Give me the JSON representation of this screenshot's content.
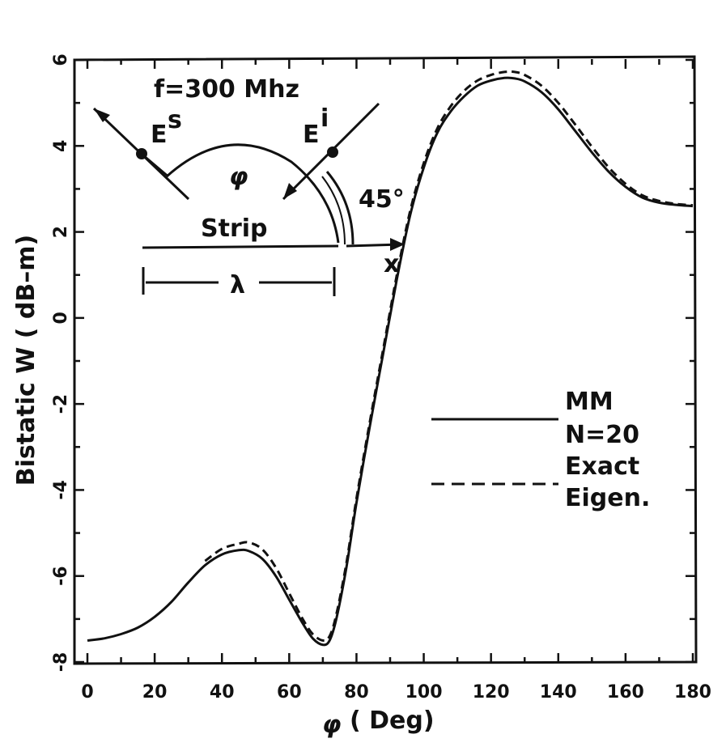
{
  "chart_data": {
    "type": "line",
    "xlabel_symbol": "φ",
    "xlabel_unit": "( Deg)",
    "ylabel": "Bistatic W ( dB–m)",
    "xlim": [
      0,
      180
    ],
    "ylim": [
      -8,
      6
    ],
    "xticks": [
      0,
      20,
      40,
      60,
      80,
      100,
      120,
      140,
      160,
      180
    ],
    "yticks": [
      -8,
      -6,
      -4,
      -2,
      0,
      2,
      4,
      6
    ],
    "xtick_labels": [
      "0",
      "20",
      "40",
      "60",
      "80",
      "100",
      "120",
      "140",
      "160",
      "180"
    ],
    "ytick_labels": [
      "-8",
      "-6",
      "-4",
      "-2",
      "0",
      "2",
      "4",
      "6"
    ],
    "grid": false,
    "legend_position": "center-right",
    "legend_entries": [
      {
        "line_style": "solid",
        "lines": [
          "MM",
          "N=20"
        ]
      },
      {
        "line_style": "dashed",
        "lines": [
          "Exact",
          "Eigen."
        ]
      }
    ],
    "series": [
      {
        "style": "solid",
        "x": [
          0,
          5,
          10,
          15,
          20,
          25,
          30,
          35,
          40,
          45,
          48,
          52,
          56,
          60,
          64,
          67,
          70,
          72,
          74,
          77,
          80,
          84,
          88,
          92,
          96,
          100,
          104,
          108,
          112,
          116,
          120,
          124,
          127,
          130,
          135,
          140,
          145,
          150,
          155,
          160,
          165,
          170,
          175,
          180
        ],
        "y": [
          -7.5,
          -7.45,
          -7.35,
          -7.2,
          -6.95,
          -6.6,
          -6.15,
          -5.75,
          -5.5,
          -5.4,
          -5.42,
          -5.6,
          -6.0,
          -6.55,
          -7.1,
          -7.45,
          -7.6,
          -7.5,
          -7.0,
          -5.8,
          -4.3,
          -2.5,
          -0.8,
          0.9,
          2.4,
          3.5,
          4.3,
          4.8,
          5.15,
          5.4,
          5.52,
          5.58,
          5.57,
          5.5,
          5.25,
          4.85,
          4.35,
          3.85,
          3.4,
          3.05,
          2.8,
          2.68,
          2.63,
          2.6
        ]
      },
      {
        "style": "dashed",
        "x": [
          35,
          40,
          45,
          48,
          52,
          56,
          60,
          64,
          67,
          70,
          72,
          74,
          77,
          80,
          84,
          88,
          92,
          96,
          100,
          104,
          108,
          112,
          116,
          120,
          124,
          127,
          130,
          135,
          140,
          145,
          150,
          155,
          160,
          165,
          170,
          175,
          180
        ],
        "y": [
          -5.65,
          -5.37,
          -5.25,
          -5.22,
          -5.38,
          -5.8,
          -6.4,
          -7.0,
          -7.35,
          -7.5,
          -7.4,
          -6.9,
          -5.7,
          -4.2,
          -2.4,
          -0.7,
          1.0,
          2.5,
          3.6,
          4.4,
          4.92,
          5.28,
          5.52,
          5.65,
          5.72,
          5.72,
          5.65,
          5.4,
          5.0,
          4.5,
          3.98,
          3.5,
          3.12,
          2.85,
          2.72,
          2.65,
          2.62
        ]
      }
    ],
    "annotations": {
      "frequency": "f=300 Mhz",
      "scattered_field": "E",
      "scattered_sup": "s",
      "incident_field": "E",
      "incident_sup": "i",
      "angle_symbol": "φ",
      "incidence_angle": "45°",
      "strip_label": "Strip",
      "x_axis_label": "x",
      "wavelength": "λ"
    }
  }
}
